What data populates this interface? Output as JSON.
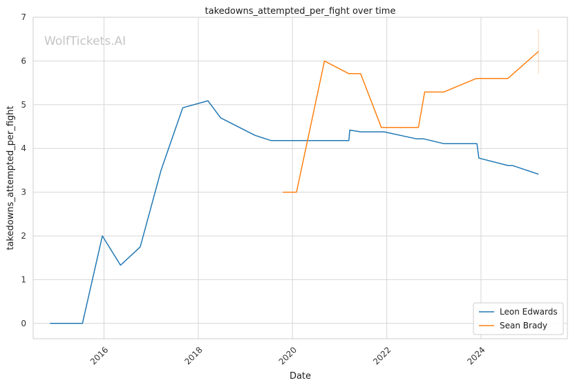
{
  "chart_data": {
    "type": "line",
    "title": "takedowns_attempted_per_fight over time",
    "xlabel": "Date",
    "ylabel": "takedowns_attempted_per_fight",
    "watermark": "WolfTickets.AI",
    "x_ticks": [
      "2016",
      "2018",
      "2020",
      "2022",
      "2024"
    ],
    "y_ticks": [
      "0",
      "1",
      "2",
      "3",
      "4",
      "5",
      "6",
      "7"
    ],
    "xlim": [
      "2014-07-01",
      "2025-11-01"
    ],
    "ylim": [
      -0.35,
      7.0
    ],
    "grid": true,
    "legend_position": "bottom-right",
    "series": [
      {
        "name": "Leon Edwards",
        "color": "#1f77b4",
        "points": [
          [
            "2014-11-08",
            0.0
          ],
          [
            "2015-07-18",
            0.0
          ],
          [
            "2015-12-19",
            2.0
          ],
          [
            "2016-05-08",
            1.33
          ],
          [
            "2016-10-08",
            1.75
          ],
          [
            "2017-03-18",
            3.5
          ],
          [
            "2017-09-02",
            4.93
          ],
          [
            "2018-03-17",
            5.09
          ],
          [
            "2018-06-23",
            4.7
          ],
          [
            "2019-03-16",
            4.3
          ],
          [
            "2019-07-20",
            4.18
          ],
          [
            "2021-03-13",
            4.18
          ],
          [
            "2021-03-20",
            4.42
          ],
          [
            "2021-06-12",
            4.38
          ],
          [
            "2021-12-11",
            4.38
          ],
          [
            "2022-08-20",
            4.22
          ],
          [
            "2022-10-15",
            4.22
          ],
          [
            "2023-03-18",
            4.11
          ],
          [
            "2023-12-01",
            4.11
          ],
          [
            "2023-12-16",
            3.78
          ],
          [
            "2024-07-27",
            3.61
          ],
          [
            "2024-09-01",
            3.61
          ],
          [
            "2025-03-22",
            3.41
          ]
        ]
      },
      {
        "name": "Sean Brady",
        "color": "#ff7f0e",
        "points": [
          [
            "2019-10-18",
            3.0
          ],
          [
            "2020-02-01",
            3.0
          ],
          [
            "2020-09-05",
            6.0
          ],
          [
            "2021-03-13",
            5.71
          ],
          [
            "2021-06-12",
            5.71
          ],
          [
            "2021-11-20",
            4.48
          ],
          [
            "2022-09-03",
            4.48
          ],
          [
            "2022-10-22",
            5.29
          ],
          [
            "2023-03-18",
            5.29
          ],
          [
            "2023-11-25",
            5.6
          ],
          [
            "2024-07-27",
            5.6
          ],
          [
            "2025-03-22",
            6.22
          ]
        ],
        "error_bar": {
          "x": "2025-03-22",
          "low": 5.71,
          "high": 6.73
        }
      }
    ]
  }
}
